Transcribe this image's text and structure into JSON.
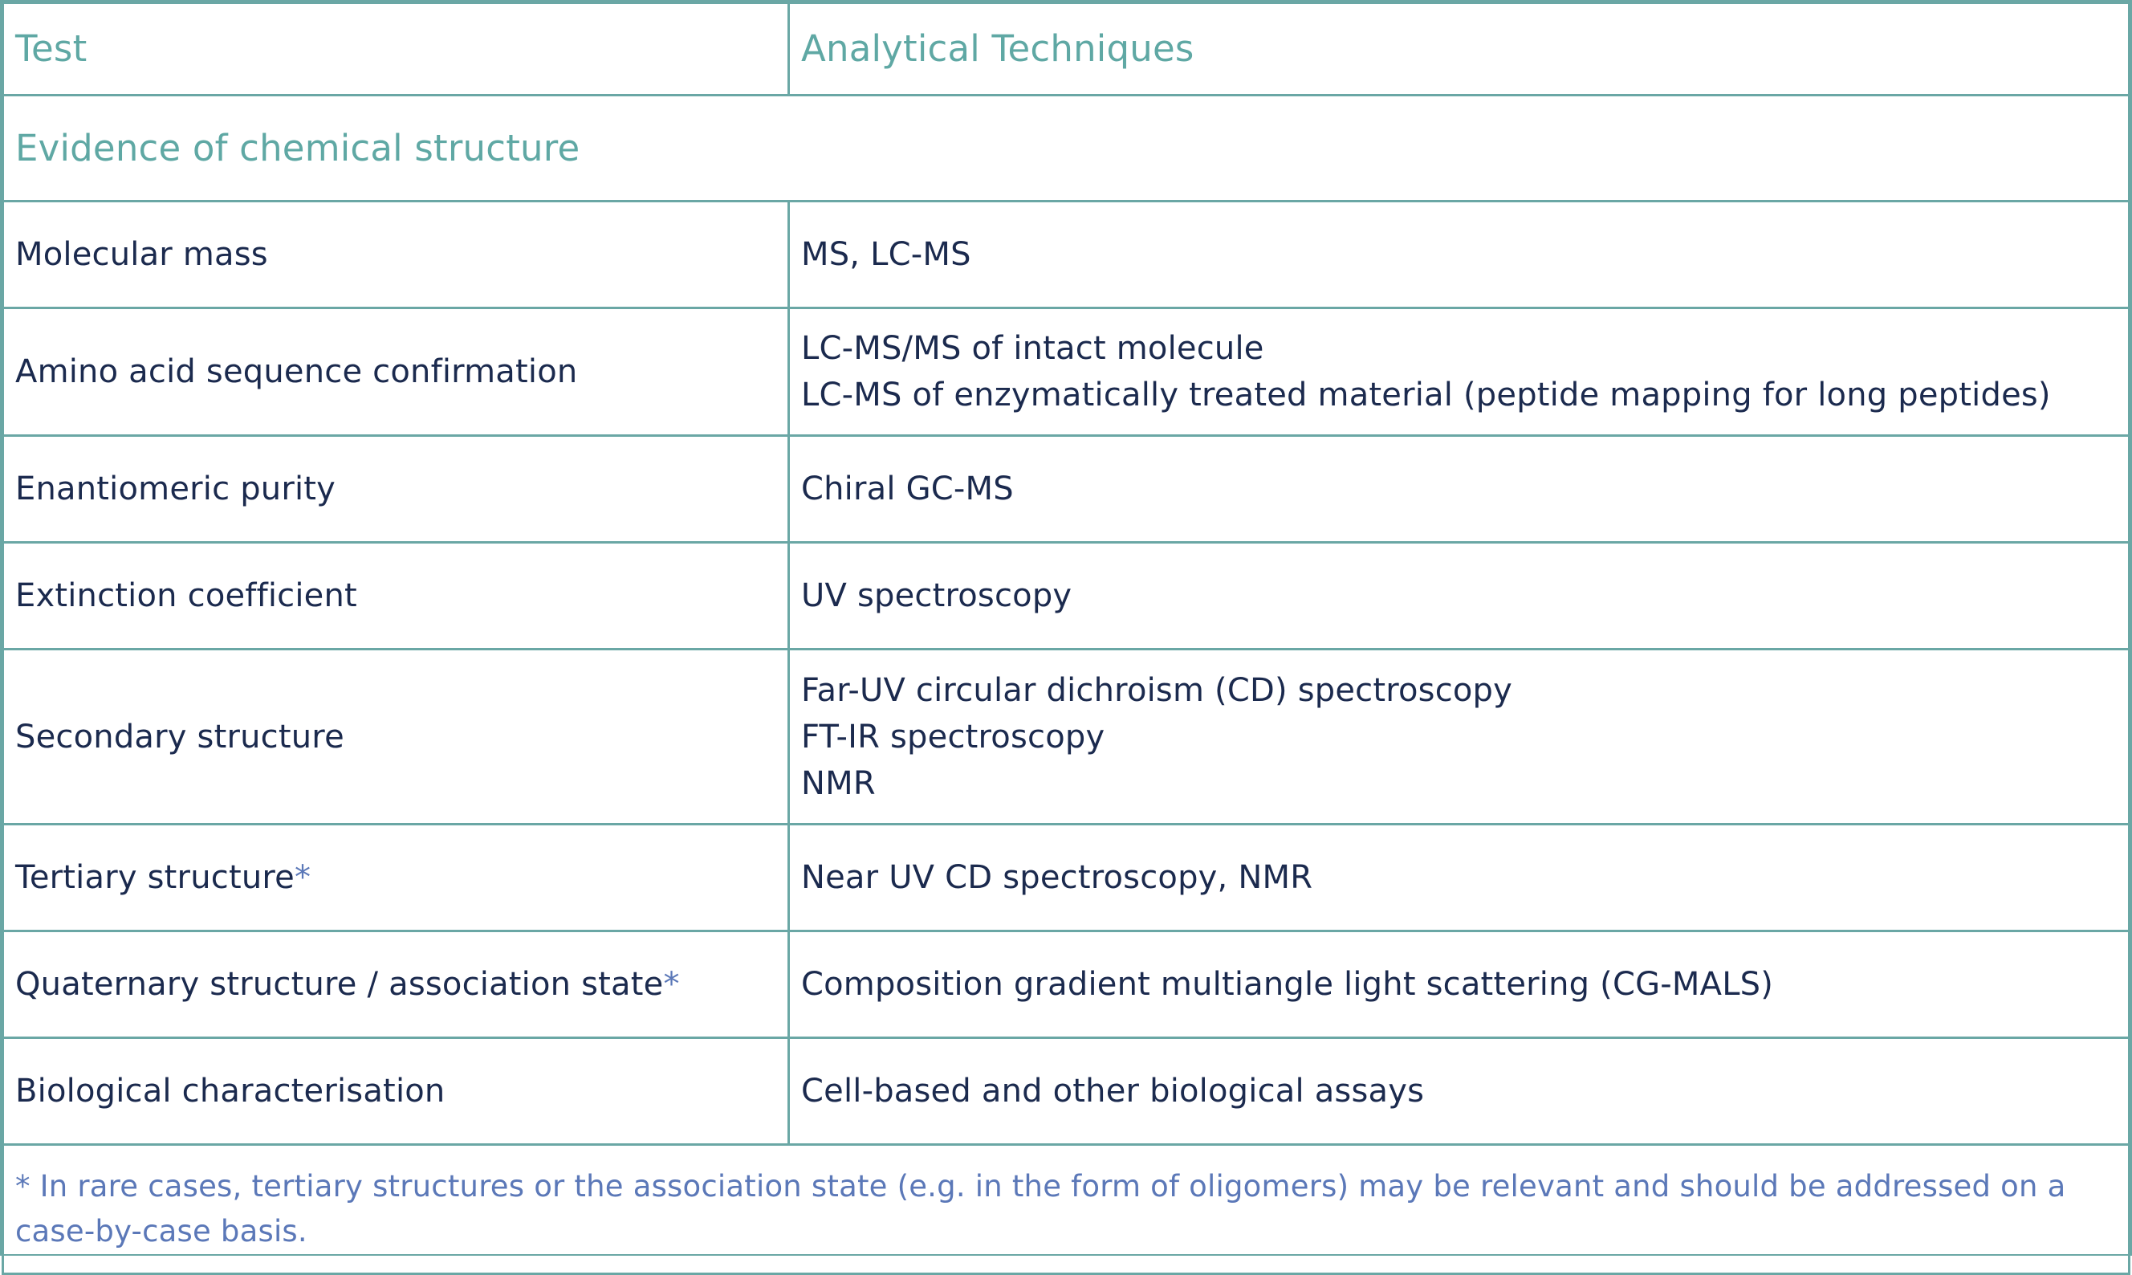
{
  "header": {
    "test": "Test",
    "techniques": "Analytical Techniques"
  },
  "section_title": "Evidence of chemical structure",
  "rows": [
    {
      "test": "Molecular mass",
      "techniques": [
        "MS, LC-MS"
      ]
    },
    {
      "test": "Amino acid sequence confirmation",
      "techniques": [
        "LC-MS/MS of intact molecule",
        "LC-MS of enzymatically treated material (peptide mapping for long peptides)"
      ]
    },
    {
      "test": "Enantiomeric purity",
      "techniques": [
        "Chiral GC-MS"
      ]
    },
    {
      "test": "Extinction coefficient",
      "techniques": [
        "UV spectroscopy"
      ]
    },
    {
      "test": "Secondary structure",
      "techniques": [
        "Far-UV circular dichroism (CD) spectroscopy",
        "FT-IR spectroscopy",
        "NMR"
      ]
    },
    {
      "test": "Tertiary structure",
      "asterisk": "*",
      "techniques": [
        "Near UV CD spectroscopy, NMR"
      ]
    },
    {
      "test": "Quaternary structure / association state",
      "asterisk": "*",
      "techniques": [
        "Composition gradient multiangle light scattering (CG-MALS)"
      ]
    },
    {
      "test": "Biological characterisation",
      "techniques": [
        "Cell-based and other biological assays"
      ]
    }
  ],
  "footnote": "* In rare cases, tertiary structures or the association state (e.g. in the form of oligomers) may be relevant and should be addressed on a case-by-case basis.",
  "colors": {
    "border": "#6aa7a5",
    "heading": "#5fa8a4",
    "body_text": "#1b2a4e",
    "footnote": "#5b78b8"
  }
}
